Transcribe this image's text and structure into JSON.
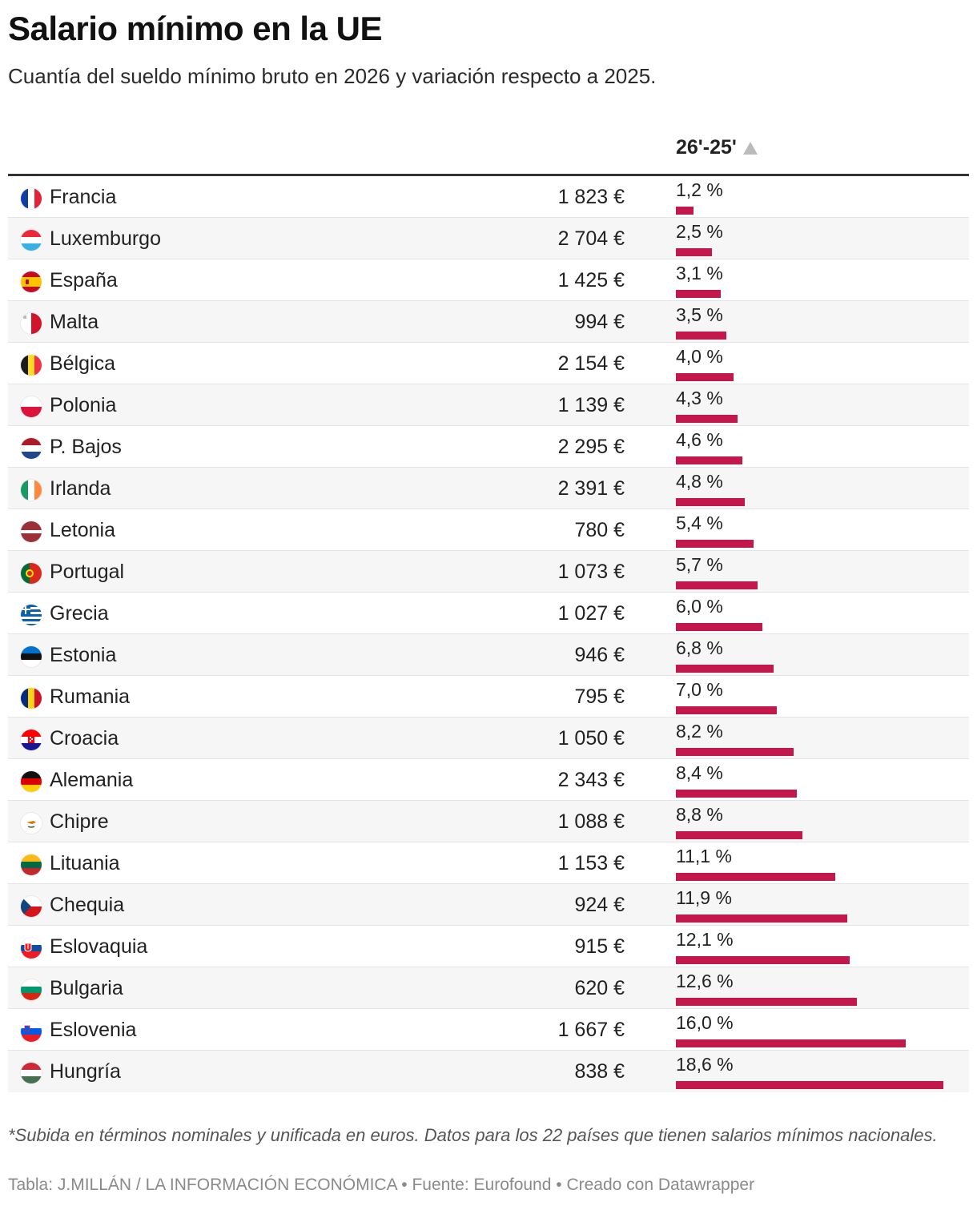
{
  "header": {
    "title": "Salario mínimo en la UE",
    "subtitle": "Cuantía del sueldo mínimo bruto en 2026 y variación respecto a 2025."
  },
  "column": {
    "variation_label": "26'-25'",
    "sort_icon": "sort-ascending-triangle-icon"
  },
  "colors": {
    "bar": "#c2184b",
    "rule": "#333333",
    "alt_row": "#f6f6f6"
  },
  "chart_data": {
    "type": "table",
    "columns": [
      "",
      "",
      "26'-25'"
    ],
    "bar_max": 18.6,
    "rows": [
      {
        "country": "Francia",
        "flag": "france-flag-icon",
        "wage": "1 823 €",
        "pct_label": "1,2 %",
        "pct": 1.2
      },
      {
        "country": "Luxemburgo",
        "flag": "luxembourg-flag-icon",
        "wage": "2 704 €",
        "pct_label": "2,5 %",
        "pct": 2.5
      },
      {
        "country": "España",
        "flag": "spain-flag-icon",
        "wage": "1 425 €",
        "pct_label": "3,1 %",
        "pct": 3.1
      },
      {
        "country": "Malta",
        "flag": "malta-flag-icon",
        "wage": "994 €",
        "pct_label": "3,5 %",
        "pct": 3.5
      },
      {
        "country": "Bélgica",
        "flag": "belgium-flag-icon",
        "wage": "2 154 €",
        "pct_label": "4,0 %",
        "pct": 4.0
      },
      {
        "country": "Polonia",
        "flag": "poland-flag-icon",
        "wage": "1 139 €",
        "pct_label": "4,3 %",
        "pct": 4.3
      },
      {
        "country": "P. Bajos",
        "flag": "netherlands-flag-icon",
        "wage": "2 295 €",
        "pct_label": "4,6 %",
        "pct": 4.6
      },
      {
        "country": "Irlanda",
        "flag": "ireland-flag-icon",
        "wage": "2 391 €",
        "pct_label": "4,8 %",
        "pct": 4.8
      },
      {
        "country": "Letonia",
        "flag": "latvia-flag-icon",
        "wage": "780 €",
        "pct_label": "5,4 %",
        "pct": 5.4
      },
      {
        "country": "Portugal",
        "flag": "portugal-flag-icon",
        "wage": "1 073 €",
        "pct_label": "5,7 %",
        "pct": 5.7
      },
      {
        "country": "Grecia",
        "flag": "greece-flag-icon",
        "wage": "1 027 €",
        "pct_label": "6,0 %",
        "pct": 6.0
      },
      {
        "country": "Estonia",
        "flag": "estonia-flag-icon",
        "wage": "946 €",
        "pct_label": "6,8 %",
        "pct": 6.8
      },
      {
        "country": "Rumania",
        "flag": "romania-flag-icon",
        "wage": "795 €",
        "pct_label": "7,0 %",
        "pct": 7.0
      },
      {
        "country": "Croacia",
        "flag": "croatia-flag-icon",
        "wage": "1 050 €",
        "pct_label": "8,2 %",
        "pct": 8.2
      },
      {
        "country": "Alemania",
        "flag": "germany-flag-icon",
        "wage": "2 343 €",
        "pct_label": "8,4 %",
        "pct": 8.4
      },
      {
        "country": "Chipre",
        "flag": "cyprus-flag-icon",
        "wage": "1 088 €",
        "pct_label": "8,8 %",
        "pct": 8.8
      },
      {
        "country": "Lituania",
        "flag": "lithuania-flag-icon",
        "wage": "1 153 €",
        "pct_label": "11,1 %",
        "pct": 11.1
      },
      {
        "country": "Chequia",
        "flag": "czechia-flag-icon",
        "wage": "924 €",
        "pct_label": "11,9 %",
        "pct": 11.9
      },
      {
        "country": "Eslovaquia",
        "flag": "slovakia-flag-icon",
        "wage": "915 €",
        "pct_label": "12,1 %",
        "pct": 12.1
      },
      {
        "country": "Bulgaria",
        "flag": "bulgaria-flag-icon",
        "wage": "620 €",
        "pct_label": "12,6 %",
        "pct": 12.6
      },
      {
        "country": "Eslovenia",
        "flag": "slovenia-flag-icon",
        "wage": "1 667 €",
        "pct_label": "16,0 %",
        "pct": 16.0
      },
      {
        "country": "Hungría",
        "flag": "hungary-flag-icon",
        "wage": "838 €",
        "pct_label": "18,6 %",
        "pct": 18.6
      }
    ]
  },
  "footer": {
    "note": "*Subida en términos nominales y unificada en euros. Datos para los 22 países que tienen salarios mínimos nacionales.",
    "source": "Tabla: J.MILLÁN / LA INFORMACIÓN ECONÓMICA • Fuente: Eurofound • Creado con Datawrapper"
  }
}
